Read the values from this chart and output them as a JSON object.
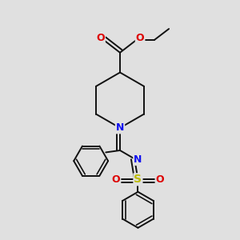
{
  "bg_color": "#e0e0e0",
  "bond_color": "#111111",
  "bond_width": 1.4,
  "dbo": 0.013,
  "N_color": "#1010ee",
  "O_color": "#dd0000",
  "S_color": "#bbbb00",
  "fs": 8,
  "fig_size": [
    3.0,
    3.0
  ],
  "dpi": 100,
  "xlim": [
    0.1,
    0.9
  ],
  "ylim": [
    0.05,
    0.95
  ]
}
